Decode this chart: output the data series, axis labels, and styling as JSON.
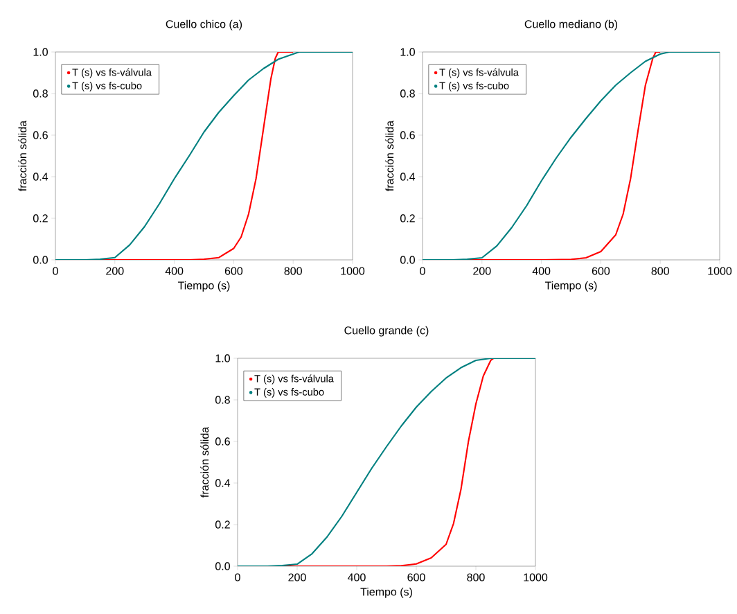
{
  "chart_data": [
    {
      "type": "line",
      "title": "Cuello chico (a)",
      "xlabel": "Tiempo (s)",
      "ylabel": "fracción sólida",
      "legend": "top left",
      "xlim": [
        0,
        1000
      ],
      "ylim": [
        0,
        1
      ],
      "xticks": [
        0,
        200,
        400,
        600,
        800,
        1000
      ],
      "yticks": [
        {
          "value": 0,
          "label": "0.0"
        },
        {
          "value": 0.2,
          "label": "0.2"
        },
        {
          "value": 0.4,
          "label": "0.4"
        },
        {
          "value": 0.6,
          "label": "0.6"
        },
        {
          "value": 0.8,
          "label": "0.8"
        },
        {
          "value": 1,
          "label": "1.0"
        }
      ],
      "series": [
        {
          "name": "T (s) vs fs-válvula",
          "color": "#ff0000",
          "x": [
            0,
            100,
            200,
            300,
            400,
            450,
            500,
            550,
            600,
            625,
            650,
            675,
            700,
            725,
            740,
            750,
            800
          ],
          "values": [
            0,
            0,
            0,
            0,
            0,
            0,
            0.003,
            0.011,
            0.055,
            0.11,
            0.22,
            0.39,
            0.63,
            0.87,
            0.97,
            1,
            1
          ]
        },
        {
          "name": "T (s) vs fs-cubo",
          "color": "#008080",
          "x": [
            0,
            100,
            150,
            200,
            250,
            300,
            350,
            400,
            450,
            500,
            550,
            600,
            650,
            700,
            750,
            800,
            820,
            900,
            1000
          ],
          "values": [
            0,
            0,
            0.003,
            0.011,
            0.072,
            0.16,
            0.27,
            0.39,
            0.5,
            0.615,
            0.71,
            0.79,
            0.865,
            0.92,
            0.965,
            0.99,
            1,
            1,
            1
          ]
        }
      ]
    },
    {
      "type": "line",
      "title": "Cuello mediano (b)",
      "xlabel": "Tiempo (s)",
      "ylabel": "fracción sólida",
      "legend": "top left",
      "xlim": [
        0,
        1000
      ],
      "ylim": [
        0,
        1
      ],
      "xticks": [
        0,
        200,
        400,
        600,
        800,
        1000
      ],
      "yticks": [
        {
          "value": 0,
          "label": "0.0"
        },
        {
          "value": 0.2,
          "label": "0.2"
        },
        {
          "value": 0.4,
          "label": "0.4"
        },
        {
          "value": 0.6,
          "label": "0.6"
        },
        {
          "value": 0.8,
          "label": "0.8"
        },
        {
          "value": 1,
          "label": "1.0"
        }
      ],
      "series": [
        {
          "name": "T (s) vs fs-válvula",
          "color": "#ff0000",
          "x": [
            0,
            100,
            200,
            300,
            400,
            500,
            550,
            600,
            650,
            675,
            700,
            725,
            750,
            775,
            785,
            800
          ],
          "values": [
            0,
            0,
            0,
            0,
            0,
            0.002,
            0.01,
            0.04,
            0.12,
            0.22,
            0.39,
            0.62,
            0.84,
            0.97,
            1,
            1
          ]
        },
        {
          "name": "T (s) vs fs-cubo",
          "color": "#008080",
          "x": [
            0,
            100,
            150,
            200,
            250,
            300,
            350,
            400,
            450,
            500,
            550,
            600,
            650,
            700,
            750,
            800,
            830,
            900,
            1000
          ],
          "values": [
            0,
            0,
            0.003,
            0.01,
            0.067,
            0.155,
            0.26,
            0.38,
            0.49,
            0.59,
            0.68,
            0.765,
            0.84,
            0.9,
            0.955,
            0.99,
            1,
            1,
            1
          ]
        }
      ]
    },
    {
      "type": "line",
      "title": "Cuello grande (c)",
      "xlabel": "Tiempo (s)",
      "ylabel": "fracción sólida",
      "legend": "top left",
      "xlim": [
        0,
        1000
      ],
      "ylim": [
        0,
        1
      ],
      "xticks": [
        0,
        200,
        400,
        600,
        800,
        1000
      ],
      "yticks": [
        {
          "value": 0,
          "label": "0.0"
        },
        {
          "value": 0.2,
          "label": "0.2"
        },
        {
          "value": 0.4,
          "label": "0.4"
        },
        {
          "value": 0.6,
          "label": "0.6"
        },
        {
          "value": 0.8,
          "label": "0.8"
        },
        {
          "value": 1,
          "label": "1.0"
        }
      ],
      "series": [
        {
          "name": "T (s) vs fs-válvula",
          "color": "#ff0000",
          "x": [
            0,
            100,
            200,
            300,
            400,
            500,
            550,
            600,
            650,
            700,
            725,
            750,
            775,
            800,
            825,
            850,
            860
          ],
          "values": [
            0,
            0,
            0,
            0,
            0,
            0,
            0.002,
            0.011,
            0.04,
            0.105,
            0.205,
            0.37,
            0.6,
            0.78,
            0.915,
            0.99,
            1
          ]
        },
        {
          "name": "T (s) vs fs-cubo",
          "color": "#008080",
          "x": [
            0,
            100,
            150,
            200,
            250,
            300,
            350,
            400,
            450,
            500,
            550,
            600,
            650,
            700,
            750,
            800,
            850,
            900,
            1000
          ],
          "values": [
            0,
            0,
            0.003,
            0.01,
            0.06,
            0.14,
            0.24,
            0.355,
            0.47,
            0.575,
            0.675,
            0.765,
            0.84,
            0.905,
            0.955,
            0.99,
            1,
            1,
            1
          ]
        }
      ]
    }
  ]
}
